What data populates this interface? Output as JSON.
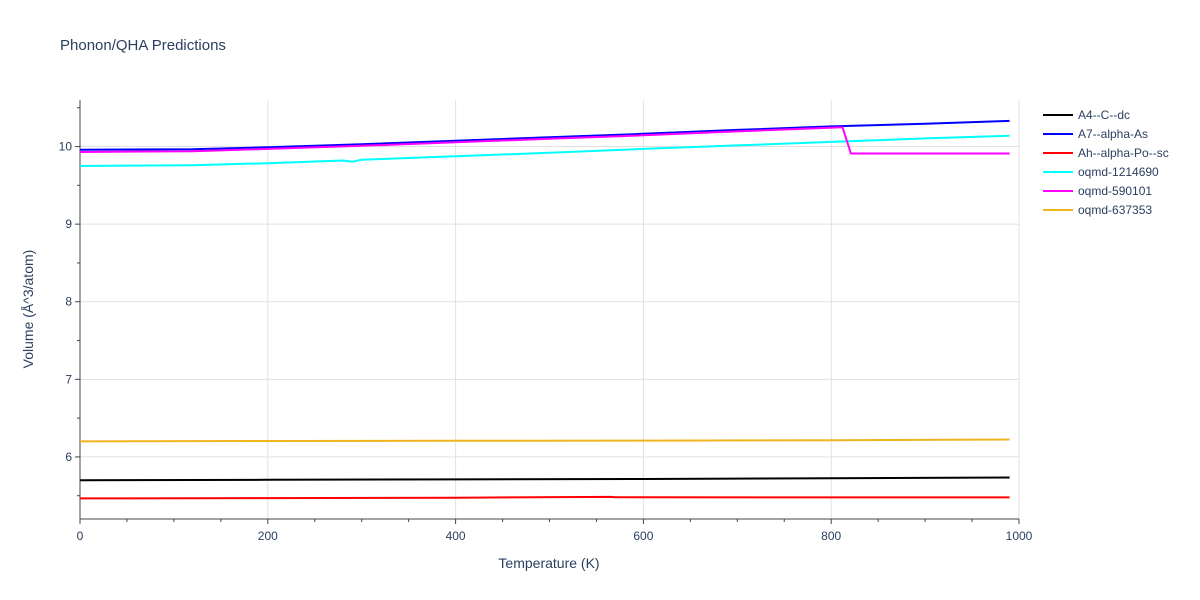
{
  "chart_data": {
    "type": "line",
    "title": "Phonon/QHA Predictions",
    "xlabel": "Temperature (K)",
    "ylabel": "Volume (Å^3/atom)",
    "xlim": [
      0,
      1000
    ],
    "ylim": [
      5.2,
      10.6
    ],
    "xticks": [
      0,
      200,
      400,
      600,
      800,
      1000
    ],
    "yticks": [
      6,
      7,
      8,
      9,
      10
    ],
    "grid": true,
    "legend_position": "top-right",
    "series": [
      {
        "name": "A4--C--dc",
        "color": "#000000",
        "x": [
          0,
          200,
          400,
          600,
          800,
          990
        ],
        "y": [
          5.7,
          5.705,
          5.71,
          5.715,
          5.725,
          5.735
        ]
      },
      {
        "name": "A7--alpha-As",
        "color": "#0000ff",
        "x": [
          0,
          120,
          200,
          300,
          400,
          500,
          600,
          700,
          800,
          900,
          990
        ],
        "y": [
          9.96,
          9.965,
          9.99,
          10.03,
          10.075,
          10.12,
          10.165,
          10.215,
          10.26,
          10.295,
          10.33
        ]
      },
      {
        "name": "Ah--alpha-Po--sc",
        "color": "#ff0000",
        "x": [
          0,
          200,
          400,
          565,
          570,
          800,
          990
        ],
        "y": [
          5.465,
          5.47,
          5.475,
          5.485,
          5.48,
          5.478,
          5.478
        ]
      },
      {
        "name": "oqmd-1214690",
        "color": "#00ffff",
        "x": [
          0,
          120,
          200,
          280,
          290,
          300,
          400,
          500,
          600,
          700,
          800,
          900,
          990
        ],
        "y": [
          9.75,
          9.76,
          9.785,
          9.82,
          9.805,
          9.83,
          9.875,
          9.92,
          9.97,
          10.015,
          10.06,
          10.105,
          10.14
        ]
      },
      {
        "name": "oqmd-590101",
        "color": "#ff00ff",
        "x": [
          0,
          120,
          200,
          300,
          400,
          500,
          600,
          700,
          812,
          821,
          900,
          990
        ],
        "y": [
          9.93,
          9.94,
          9.97,
          10.01,
          10.055,
          10.1,
          10.145,
          10.195,
          10.25,
          9.91,
          9.91,
          9.91
        ]
      },
      {
        "name": "oqmd-637353",
        "color": "#f0b41e",
        "x": [
          0,
          200,
          400,
          600,
          800,
          990
        ],
        "y": [
          6.2,
          6.205,
          6.208,
          6.21,
          6.215,
          6.225
        ]
      }
    ]
  }
}
